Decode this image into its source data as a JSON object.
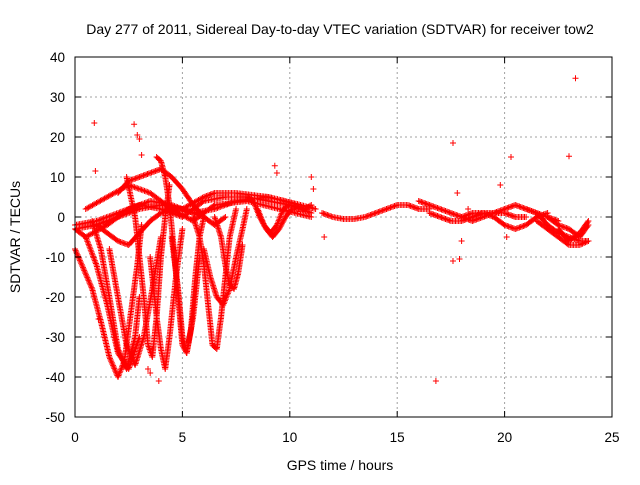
{
  "chart_data": {
    "type": "scatter",
    "title": "Day 277 of 2011, Sidereal Day-to-day VTEC variation (SDTVAR) for receiver tow2",
    "xlabel": "GPS time / hours",
    "ylabel": "SDTVAR / TECUs",
    "xlim": [
      0,
      25
    ],
    "ylim": [
      -50,
      40
    ],
    "x_ticks": [
      0,
      5,
      10,
      15,
      20,
      25
    ],
    "x_tick_labels": [
      "0",
      "5",
      "10",
      "15",
      "20",
      "25"
    ],
    "y_ticks": [
      -50,
      -40,
      -30,
      -20,
      -10,
      0,
      10,
      20,
      30,
      40
    ],
    "y_tick_labels": [
      "-50",
      "-40",
      "-30",
      "-20",
      "-10",
      "0",
      "10",
      "20",
      "30",
      "40"
    ],
    "grid": true,
    "legend": "none",
    "marker": "+",
    "series": [
      {
        "name": "SDTVAR",
        "color": "#ff0000",
        "curves": [
          {
            "x": [
              0.0,
              0.4,
              0.8,
              1.2,
              1.6,
              2.0,
              2.3,
              2.6,
              2.9,
              3.1
            ],
            "y": [
              -8,
              -13,
              -18,
              -26,
              -35,
              -40,
              -36,
              -24,
              -12,
              -2
            ]
          },
          {
            "x": [
              0.0,
              0.5,
              1.0,
              1.5,
              2.0,
              2.5,
              3.0
            ],
            "y": [
              -3,
              -5,
              -12,
              -22,
              -34,
              -38,
              -30
            ]
          },
          {
            "x": [
              0.8,
              1.2,
              1.6,
              2.0,
              2.4,
              2.8,
              3.0
            ],
            "y": [
              -1,
              -8,
              -20,
              -33,
              -38,
              -30,
              -20
            ]
          },
          {
            "x": [
              1.6,
              2.0,
              2.4,
              2.8,
              3.2,
              3.6,
              4.0
            ],
            "y": [
              -8,
              -20,
              -32,
              -37,
              -30,
              -18,
              -5
            ]
          },
          {
            "x": [
              2.4,
              2.8,
              3.0,
              3.2,
              3.4,
              3.6,
              3.8,
              4.0,
              4.2,
              4.4
            ],
            "y": [
              10,
              0,
              -10,
              -20,
              -32,
              -35,
              -25,
              -10,
              0,
              8
            ]
          },
          {
            "x": [
              3.5,
              3.8,
              4.0,
              4.2,
              4.4,
              4.7,
              5.0
            ],
            "y": [
              -10,
              -25,
              -33,
              -38,
              -30,
              -15,
              -3
            ]
          },
          {
            "x": [
              3.8,
              4.0,
              4.2,
              4.4,
              4.6,
              4.8,
              5.0,
              5.2,
              5.5,
              5.8
            ],
            "y": [
              15,
              14,
              10,
              3,
              -8,
              -20,
              -32,
              -34,
              -25,
              -10
            ]
          },
          {
            "x": [
              4.5,
              4.8,
              5.0,
              5.2,
              5.4,
              5.6,
              5.8,
              6.0
            ],
            "y": [
              -5,
              -18,
              -30,
              -34,
              -28,
              -15,
              -5,
              0
            ]
          },
          {
            "x": [
              5.5,
              5.8,
              6.0,
              6.2,
              6.4,
              6.6,
              6.8,
              7.0,
              7.2,
              7.5
            ],
            "y": [
              0,
              -5,
              -12,
              -22,
              -32,
              -33,
              -25,
              -15,
              -5,
              2
            ]
          },
          {
            "x": [
              6.0,
              6.3,
              6.6,
              6.9,
              7.2,
              7.5,
              7.8,
              8.0
            ],
            "y": [
              -8,
              -15,
              -20,
              -22,
              -18,
              -10,
              -3,
              2
            ]
          },
          {
            "x": [
              6.5,
              6.8,
              7.0,
              7.2,
              7.4,
              7.6,
              7.8
            ],
            "y": [
              0,
              -5,
              -12,
              -17,
              -18,
              -14,
              -7
            ]
          },
          {
            "x": [
              0.0,
              1.0,
              2.0,
              3.0,
              4.0,
              5.0,
              6.0,
              6.5,
              7.5,
              9.0,
              10.5,
              11.2
            ],
            "y": [
              -3,
              -2,
              0,
              2,
              3,
              2,
              5,
              6,
              6,
              5,
              3,
              2
            ]
          },
          {
            "x": [
              0.0,
              1.0,
              2.0,
              3.0,
              4.0,
              5.0,
              6.0,
              7.0,
              8.0,
              9.0,
              10.0,
              11.0
            ],
            "y": [
              -2,
              -1,
              1,
              3,
              2,
              0,
              4,
              5,
              5,
              4,
              3,
              1
            ]
          },
          {
            "x": [
              0.5,
              1.5,
              2.5,
              3.5,
              4.5,
              5.5,
              6.5,
              8.0,
              9.5,
              11.0
            ],
            "y": [
              2,
              5,
              8,
              6,
              2,
              -1,
              3,
              4,
              2,
              0
            ]
          },
          {
            "x": [
              0.5,
              1.5,
              2.5,
              3.5,
              4.5,
              5.5,
              6.5,
              7.5,
              9.0,
              10.5
            ],
            "y": [
              -5,
              -2,
              2,
              4,
              3,
              1,
              2,
              4,
              5,
              3
            ]
          },
          {
            "x": [
              1.0,
              1.5,
              2.0,
              2.5,
              3.0,
              3.5,
              4.0,
              4.5,
              5.0,
              5.5,
              6.0
            ],
            "y": [
              -2,
              -4,
              -6,
              -7,
              -4,
              -1,
              1,
              2,
              2,
              1,
              0
            ]
          },
          {
            "x": [
              2.0,
              2.5,
              3.0,
              3.5,
              4.0,
              4.5,
              5.0,
              5.5,
              6.0,
              6.5,
              7.0
            ],
            "y": [
              6,
              9,
              10,
              11,
              12,
              10,
              7,
              3,
              0,
              -2,
              0
            ]
          },
          {
            "x": [
              8.0,
              8.3,
              8.6,
              8.9,
              9.2,
              9.5,
              9.8,
              10.1,
              10.4,
              10.7,
              11.0
            ],
            "y": [
              5,
              4,
              0,
              -3,
              -5,
              -3,
              0,
              2,
              2,
              2,
              3
            ]
          },
          {
            "x": [
              8.5,
              8.8,
              9.1,
              9.4,
              9.7,
              10.0
            ],
            "y": [
              2,
              -2,
              -4,
              -2,
              2,
              3
            ]
          },
          {
            "x": [
              11.5,
              12.0,
              12.5,
              13.0,
              13.5,
              14.0,
              14.5,
              15.0,
              15.5,
              16.0,
              16.5
            ],
            "y": [
              1,
              0,
              -0.5,
              -0.5,
              0,
              1,
              2,
              3,
              3,
              2,
              2
            ]
          },
          {
            "x": [
              16.0,
              16.5,
              17.0,
              17.5,
              18.0,
              18.5,
              19.0,
              19.5,
              20.0,
              20.5,
              21.0
            ],
            "y": [
              4,
              3,
              2,
              1,
              0,
              -1,
              0,
              1,
              1,
              0,
              0
            ]
          },
          {
            "x": [
              16.5,
              17.0,
              17.5,
              18.0,
              18.5,
              19.0,
              19.5,
              20.0,
              20.5,
              21.0,
              21.5,
              22.0
            ],
            "y": [
              1,
              0,
              -1,
              -1,
              0,
              1,
              0,
              -2,
              -3,
              -2,
              0,
              1
            ]
          },
          {
            "x": [
              18.0,
              18.5,
              19.0,
              19.5,
              20.0,
              20.5,
              21.0,
              21.5,
              22.0,
              22.5
            ],
            "y": [
              0,
              1,
              1,
              1,
              2,
              3,
              2,
              1,
              0,
              -1
            ]
          },
          {
            "x": [
              21.0,
              21.5,
              22.0,
              22.5,
              23.0,
              23.5,
              23.9
            ],
            "y": [
              2,
              1,
              -2,
              -4,
              -5,
              -6,
              -6
            ]
          },
          {
            "x": [
              21.5,
              22.0,
              22.5,
              23.0,
              23.5,
              23.9
            ],
            "y": [
              -1,
              -3,
              -5,
              -7,
              -7,
              -6
            ]
          },
          {
            "x": [
              22.0,
              22.5,
              23.0,
              23.5,
              23.9
            ],
            "y": [
              0,
              -2,
              -3,
              -5,
              -2
            ]
          },
          {
            "x": [
              22.5,
              23.0,
              23.5,
              23.9
            ],
            "y": [
              -3,
              -6,
              -4,
              -1
            ]
          }
        ],
        "points": {
          "x": [
            0.9,
            0.95,
            1.1,
            2.75,
            2.9,
            3.0,
            3.1,
            3.9,
            3.4,
            3.5,
            3.6,
            9.3,
            9.4,
            11.0,
            11.1,
            11.6,
            16.8,
            17.6,
            17.8,
            17.6,
            17.9,
            18.3,
            19.8,
            20.3,
            23.0,
            23.3,
            20.1,
            18.0
          ],
          "y": [
            23.5,
            11.5,
            -25.5,
            23.2,
            20.5,
            19.5,
            15.5,
            -41,
            -38,
            -39,
            -33,
            12.8,
            11.0,
            10.0,
            7.0,
            -5,
            -41,
            18.5,
            6.0,
            -11,
            -10.5,
            2.0,
            8.0,
            15.0,
            15.2,
            34.7,
            -5,
            -6
          ]
        }
      }
    ]
  }
}
